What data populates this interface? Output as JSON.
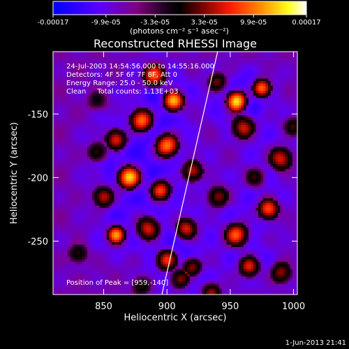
{
  "chart_data": {
    "type": "heatmap",
    "title": "Reconstructed RHESSI Image",
    "xlabel": "Heliocentric X (arcsec)",
    "ylabel": "Heliocentric Y (arcsec)",
    "xlim": [
      810,
      1003
    ],
    "ylim": [
      -292,
      -101
    ],
    "x_ticks": [
      850,
      900,
      950,
      1000
    ],
    "y_ticks": [
      -150,
      -200,
      -250
    ],
    "colorbar": {
      "min": -0.00017,
      "max": 0.00017,
      "ticks": [
        -0.00017,
        -9.9e-05,
        -3.3e-05,
        3.3e-05,
        9.9e-05,
        0.00017
      ],
      "tick_labels": [
        "-0.00017",
        "-9.9e-05",
        "-3.3e-05",
        "3.3e-05",
        "9.9e-05",
        "0.00017"
      ],
      "unit_label": "(photons cm⁻² s⁻¹ asec⁻²)",
      "colors": [
        "#0000ff",
        "#7f00ff",
        "#800080",
        "#000000",
        "#8b0000",
        "#ff0000",
        "#ff8c00",
        "#ffff00",
        "#ffffff"
      ]
    },
    "annotations": [
      "24-Jul-2003 14:54:56.000 to 14:55:16.000",
      "Detectors: 4F 5F 6F 7F 8F, Att 0",
      "Energy Range: 25.0 - 50.0 keV",
      "Clean     Total counts: 1.13E+03"
    ],
    "peak_label": "Position of Peak = [959,-140]",
    "peak": [
      959,
      -140
    ],
    "limb_line": [
      [
        896,
        -292
      ],
      [
        940,
        -101
      ]
    ],
    "grid": false
  },
  "footer": {
    "timestamp": "1-Jun-2013 21:41"
  }
}
